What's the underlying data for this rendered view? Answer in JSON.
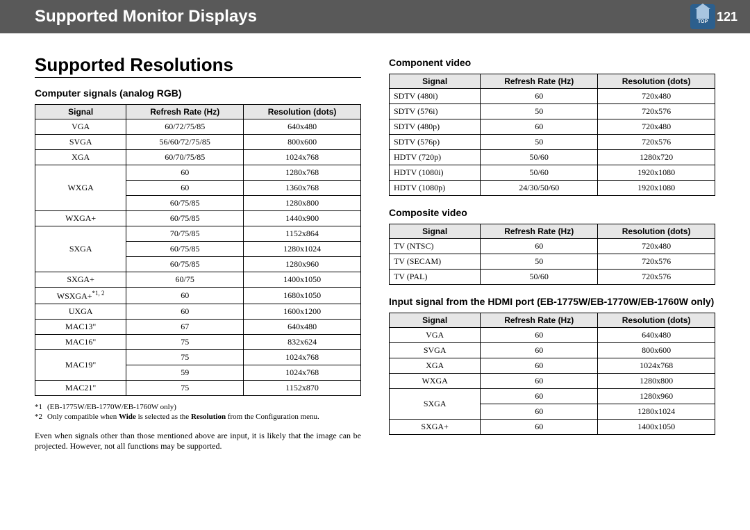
{
  "header": {
    "title": "Supported Monitor Displays",
    "page_number": "121",
    "top_label": "TOP"
  },
  "left": {
    "section_title": "Supported Resolutions",
    "sub_title": "Computer signals (analog RGB)",
    "headers": {
      "signal": "Signal",
      "rate": "Refresh Rate (Hz)",
      "res": "Resolution (dots)"
    },
    "rows": [
      {
        "signal": "VGA",
        "rate": "60/72/75/85",
        "res": "640x480",
        "first": true
      },
      {
        "signal": "SVGA",
        "rate": "56/60/72/75/85",
        "res": "800x600",
        "first": true
      },
      {
        "signal": "XGA",
        "rate": "60/70/75/85",
        "res": "1024x768",
        "first": true
      },
      {
        "signal": "WXGA",
        "rate": "60",
        "res": "1280x768",
        "first": true
      },
      {
        "signal": "",
        "rate": "60",
        "res": "1360x768",
        "first": false
      },
      {
        "signal": "",
        "rate": "60/75/85",
        "res": "1280x800",
        "first": false
      },
      {
        "signal": "WXGA+",
        "rate": "60/75/85",
        "res": "1440x900",
        "first": true
      },
      {
        "signal": "SXGA",
        "rate": "70/75/85",
        "res": "1152x864",
        "first": true
      },
      {
        "signal": "",
        "rate": "60/75/85",
        "res": "1280x1024",
        "first": false
      },
      {
        "signal": "",
        "rate": "60/75/85",
        "res": "1280x960",
        "first": false
      },
      {
        "signal": "SXGA+",
        "rate": "60/75",
        "res": "1400x1050",
        "first": true
      },
      {
        "signal": "WSXGA+",
        "sup": "*1, 2",
        "rate": "60",
        "res": "1680x1050",
        "first": true
      },
      {
        "signal": "UXGA",
        "rate": "60",
        "res": "1600x1200",
        "first": true
      },
      {
        "signal": "MAC13\"",
        "rate": "67",
        "res": "640x480",
        "first": true
      },
      {
        "signal": "MAC16\"",
        "rate": "75",
        "res": "832x624",
        "first": true
      },
      {
        "signal": "MAC19\"",
        "rate": "75",
        "res": "1024x768",
        "first": true
      },
      {
        "signal": "",
        "rate": "59",
        "res": "1024x768",
        "first": false
      },
      {
        "signal": "MAC21\"",
        "rate": "75",
        "res": "1152x870",
        "first": true
      }
    ],
    "footnotes": {
      "f1_label": "*1",
      "f1_text": "(EB-1775W/EB-1770W/EB-1760W only)",
      "f2_label": "*2",
      "f2_text": "Only compatible when Wide is selected as the Resolution from the Configuration menu."
    },
    "body_note": "Even when signals other than those mentioned above are input, it is likely that the image can be projected. However, not all functions may be supported."
  },
  "right": {
    "component": {
      "title": "Component video",
      "rows": [
        {
          "signal": "SDTV (480i)",
          "rate": "60",
          "res": "720x480"
        },
        {
          "signal": "SDTV (576i)",
          "rate": "50",
          "res": "720x576"
        },
        {
          "signal": "SDTV (480p)",
          "rate": "60",
          "res": "720x480"
        },
        {
          "signal": "SDTV (576p)",
          "rate": "50",
          "res": "720x576"
        },
        {
          "signal": "HDTV (720p)",
          "rate": "50/60",
          "res": "1280x720"
        },
        {
          "signal": "HDTV (1080i)",
          "rate": "50/60",
          "res": "1920x1080"
        },
        {
          "signal": "HDTV (1080p)",
          "rate": "24/30/50/60",
          "res": "1920x1080"
        }
      ]
    },
    "composite": {
      "title": "Composite video",
      "rows": [
        {
          "signal": "TV (NTSC)",
          "rate": "60",
          "res": "720x480"
        },
        {
          "signal": "TV (SECAM)",
          "rate": "50",
          "res": "720x576"
        },
        {
          "signal": "TV (PAL)",
          "rate": "50/60",
          "res": "720x576"
        }
      ]
    },
    "hdmi": {
      "title": "Input signal from the HDMI port (EB-1775W/EB-1770W/EB-1760W only)",
      "rows": [
        {
          "signal": "VGA",
          "rate": "60",
          "res": "640x480",
          "first": true
        },
        {
          "signal": "SVGA",
          "rate": "60",
          "res": "800x600",
          "first": true
        },
        {
          "signal": "XGA",
          "rate": "60",
          "res": "1024x768",
          "first": true
        },
        {
          "signal": "WXGA",
          "rate": "60",
          "res": "1280x800",
          "first": true
        },
        {
          "signal": "SXGA",
          "rate": "60",
          "res": "1280x960",
          "first": true,
          "span": 2
        },
        {
          "signal": "",
          "rate": "60",
          "res": "1280x1024",
          "first": false,
          "merged": true
        },
        {
          "signal": "SXGA+",
          "rate": "60",
          "res": "1400x1050",
          "first": true
        }
      ]
    },
    "headers": {
      "signal": "Signal",
      "rate": "Refresh Rate (Hz)",
      "res": "Resolution (dots)"
    }
  }
}
